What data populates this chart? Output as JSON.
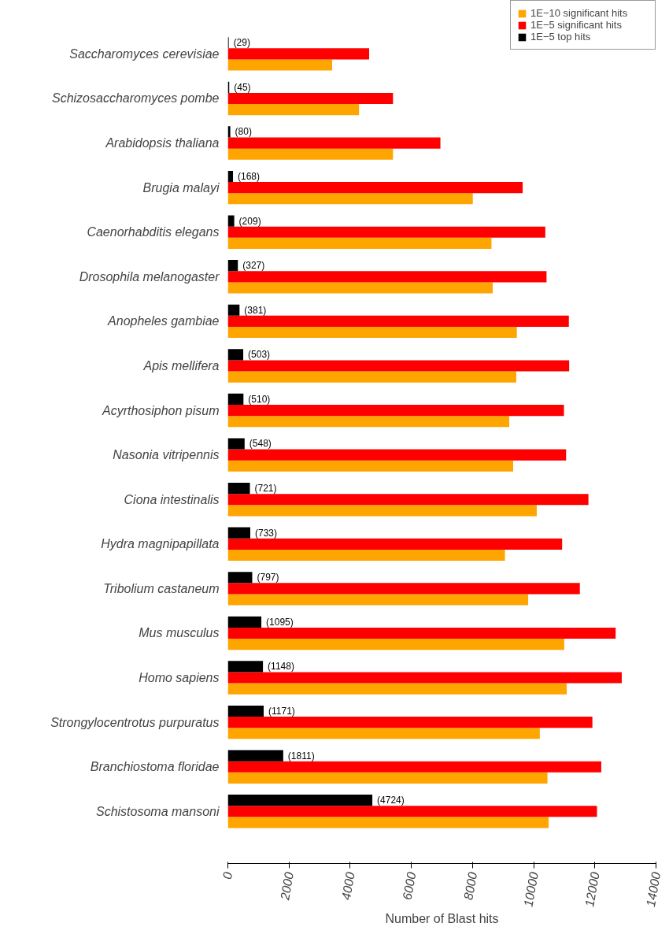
{
  "chart_data": {
    "type": "bar",
    "orientation": "horizontal",
    "xlabel": "Number of Blast hits",
    "categories": [
      "Saccharomyces cerevisiae",
      "Schizosaccharomyces pombe",
      "Arabidopsis thaliana",
      "Brugia malayi",
      "Caenorhabditis elegans",
      "Drosophila melanogaster",
      "Anopheles gambiae",
      "Apis mellifera",
      "Acyrthosiphon pisum",
      "Nasonia vitripennis",
      "Ciona intestinalis",
      "Hydra magnipapillata",
      "Tribolium castaneum",
      "Mus musculus",
      "Homo sapiens",
      "Strongylocentrotus purpuratus",
      "Branchiostoma floridae",
      "Schistosoma mansoni"
    ],
    "series": [
      {
        "name": "1E−10 significant hits",
        "color": "#ffa500",
        "values": [
          3410,
          4290,
          5400,
          8010,
          8620,
          8660,
          9450,
          9430,
          9200,
          9330,
          10100,
          9060,
          9820,
          11000,
          11080,
          10200,
          10450,
          10490
        ]
      },
      {
        "name": "1E−5 significant hits",
        "color": "#ff0000",
        "values": [
          4620,
          5400,
          6950,
          9640,
          10380,
          10420,
          11150,
          11160,
          10990,
          11060,
          11790,
          10930,
          11510,
          12680,
          12880,
          11920,
          12210,
          12070
        ]
      },
      {
        "name": "1E−5 top hits",
        "color": "#000000",
        "values": [
          29,
          45,
          80,
          168,
          209,
          327,
          381,
          503,
          510,
          548,
          721,
          733,
          797,
          1095,
          1148,
          1171,
          1811,
          4724
        ],
        "value_labels": [
          "(29)",
          "(45)",
          "(80)",
          "(168)",
          "(209)",
          "(327)",
          "(381)",
          "(503)",
          "(510)",
          "(548)",
          "(721)",
          "(733)",
          "(797)",
          "(1095)",
          "(1148)",
          "(1171)",
          "(1811)",
          "(4724)"
        ]
      }
    ],
    "xlim": [
      0,
      14000
    ],
    "xticks": [
      0,
      2000,
      4000,
      6000,
      8000,
      10000,
      12000,
      14000
    ],
    "grid": false,
    "legend": "top right"
  }
}
